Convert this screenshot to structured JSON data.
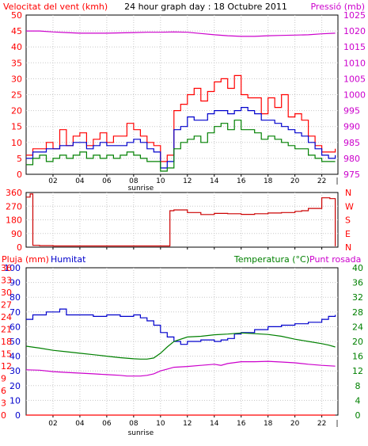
{
  "chart_data": [
    {
      "type": "line",
      "title": "24 hour graph day : 18 Octubre 2011",
      "left_axis_label": "Velocitat del vent (kmh)",
      "right_axis_label": "Pressió (mb)",
      "ylim_left": [
        0,
        50
      ],
      "ylim_right": [
        975,
        1025
      ],
      "left_ticks": [
        "0",
        "5",
        "10",
        "15",
        "20",
        "25",
        "30",
        "35",
        "40",
        "45",
        "50"
      ],
      "right_ticks": [
        "975",
        "980",
        "985",
        "990",
        "995",
        "1000",
        "1005",
        "1010",
        "1015",
        "1020",
        "1025"
      ],
      "x_ticks": [
        "02",
        "04",
        "06",
        "08",
        "10",
        "12",
        "14",
        "16",
        "18",
        "20",
        "22"
      ],
      "x_hours": [
        2,
        4,
        6,
        8,
        10,
        12,
        14,
        16,
        18,
        20,
        22
      ],
      "sunrise_label": "sunrise",
      "sunrise_hour": 9,
      "grid": true,
      "colors": {
        "gust": "#ff0000",
        "wind": "#0000cc",
        "avg": "#008000",
        "pressure": "#cc00cc",
        "title": "#000000"
      },
      "series": [
        {
          "key": "gust",
          "axis": "left",
          "x": [
            0,
            0.5,
            1,
            1.5,
            2,
            2.5,
            3,
            3.5,
            4,
            4.5,
            5,
            5.5,
            6,
            6.5,
            7,
            7.5,
            8,
            8.5,
            9,
            9.5,
            10,
            10.5,
            11,
            11.5,
            12,
            12.5,
            13,
            13.5,
            14,
            14.5,
            15,
            15.5,
            16,
            16.5,
            17,
            17.5,
            18,
            18.5,
            19,
            19.5,
            20,
            20.5,
            21,
            21.5,
            22,
            22.5,
            23
          ],
          "y": [
            6,
            8,
            8,
            10,
            8,
            14,
            9,
            12,
            13,
            9,
            11,
            13,
            10,
            12,
            12,
            16,
            14,
            12,
            10,
            9,
            4,
            6,
            20,
            22,
            25,
            27,
            23,
            26,
            29,
            30,
            27,
            31,
            25,
            24,
            24,
            19,
            24,
            21,
            25,
            18,
            19,
            17,
            12,
            9,
            7,
            7,
            8
          ]
        },
        {
          "key": "wind",
          "axis": "left",
          "x": [
            0,
            0.5,
            1,
            1.5,
            2,
            2.5,
            3,
            3.5,
            4,
            4.5,
            5,
            5.5,
            6,
            6.5,
            7,
            7.5,
            8,
            8.5,
            9,
            9.5,
            10,
            10.5,
            11,
            11.5,
            12,
            12.5,
            13,
            13.5,
            14,
            14.5,
            15,
            15.5,
            16,
            16.5,
            17,
            17.5,
            18,
            18.5,
            19,
            19.5,
            20,
            20.5,
            21,
            21.5,
            22,
            22.5,
            23
          ],
          "y": [
            5,
            7,
            7,
            8,
            8,
            9,
            9,
            10,
            10,
            8,
            9,
            10,
            9,
            9,
            9,
            10,
            11,
            10,
            8,
            7,
            2,
            4,
            14,
            15,
            18,
            17,
            17,
            19,
            20,
            20,
            19,
            20,
            21,
            20,
            19,
            17,
            17,
            16,
            15,
            14,
            13,
            12,
            10,
            8,
            6,
            5,
            6
          ]
        },
        {
          "key": "avg",
          "axis": "left",
          "x": [
            0,
            0.5,
            1,
            1.5,
            2,
            2.5,
            3,
            3.5,
            4,
            4.5,
            5,
            5.5,
            6,
            6.5,
            7,
            7.5,
            8,
            8.5,
            9,
            9.5,
            10,
            10.5,
            11,
            11.5,
            12,
            12.5,
            13,
            13.5,
            14,
            14.5,
            15,
            15.5,
            16,
            16.5,
            17,
            17.5,
            18,
            18.5,
            19,
            19.5,
            20,
            20.5,
            21,
            21.5,
            22,
            22.5,
            23
          ],
          "y": [
            3,
            5,
            6,
            4,
            5,
            6,
            5,
            6,
            7,
            5,
            6,
            5,
            6,
            5,
            6,
            7,
            6,
            5,
            4,
            4,
            1,
            2,
            8,
            10,
            11,
            12,
            10,
            13,
            15,
            16,
            14,
            17,
            14,
            14,
            13,
            11,
            12,
            11,
            10,
            9,
            8,
            8,
            6,
            5,
            4,
            4,
            4
          ]
        },
        {
          "key": "pressure",
          "axis": "right",
          "x": [
            0,
            1,
            2,
            3,
            4,
            5,
            6,
            7,
            8,
            9,
            10,
            11,
            12,
            13,
            14,
            15,
            16,
            17,
            18,
            19,
            20,
            21,
            22,
            23
          ],
          "y": [
            1020,
            1020,
            1019.7,
            1019.5,
            1019.3,
            1019.3,
            1019.3,
            1019.4,
            1019.5,
            1019.6,
            1019.6,
            1019.7,
            1019.6,
            1019.2,
            1018.8,
            1018.5,
            1018.3,
            1018.3,
            1018.5,
            1018.6,
            1018.7,
            1018.8,
            1019.1,
            1019.3
          ]
        }
      ]
    },
    {
      "type": "line",
      "ylim_left": [
        0,
        360
      ],
      "left_ticks": [
        "0",
        "90",
        "180",
        "270",
        "360"
      ],
      "right_ticks": [
        "N",
        "E",
        "S",
        "W",
        "N"
      ],
      "x_hours": [
        2,
        4,
        6,
        8,
        10,
        12,
        14,
        16,
        18,
        20,
        22
      ],
      "grid": true,
      "colors": {
        "direction": "#cc0000",
        "right_labels": "#ff0000"
      },
      "series": [
        {
          "key": "direction",
          "axis": "left",
          "x": [
            0,
            0.3,
            0.5,
            1,
            2,
            3,
            4,
            5,
            6,
            7,
            8,
            9,
            10,
            10.5,
            10.7,
            11,
            12,
            13,
            14,
            15,
            16,
            17,
            18,
            19,
            20,
            20.5,
            21,
            22,
            22.6,
            23
          ],
          "y": [
            330,
            350,
            12,
            10,
            8,
            8,
            8,
            8,
            8,
            8,
            8,
            8,
            8,
            8,
            240,
            245,
            228,
            215,
            222,
            220,
            216,
            220,
            225,
            228,
            236,
            240,
            255,
            325,
            320,
            6
          ]
        }
      ]
    },
    {
      "type": "line",
      "left_axis_label_a": "Pluja (mm)",
      "left_axis_label_b": "Humitat",
      "right_axis_label_a": "Temperatura (°C)",
      "right_axis_label_b": "Punt rosada",
      "ylim_left": [
        0,
        100
      ],
      "ylim_rain": [
        0,
        36
      ],
      "ylim_right": [
        0,
        40
      ],
      "left_ticks": [
        "0",
        "10",
        "20",
        "30",
        "40",
        "50",
        "60",
        "70",
        "80",
        "90",
        "100"
      ],
      "rain_ticks": [
        "0",
        "3",
        "6",
        "9",
        "12",
        "15",
        "18",
        "21",
        "24",
        "27",
        "30",
        "33",
        "36"
      ],
      "right_ticks": [
        "0",
        "4",
        "8",
        "12",
        "16",
        "20",
        "24",
        "28",
        "32",
        "36",
        "40"
      ],
      "x_ticks": [
        "02",
        "04",
        "06",
        "08",
        "10",
        "12",
        "14",
        "16",
        "18",
        "20",
        "22"
      ],
      "x_hours": [
        2,
        4,
        6,
        8,
        10,
        12,
        14,
        16,
        18,
        20,
        22
      ],
      "sunrise_label": "sunrise",
      "sunrise_hour": 9,
      "grid": true,
      "colors": {
        "rain": "#ff0000",
        "humidity": "#0000cc",
        "temperature": "#008000",
        "dewpoint": "#cc00cc"
      },
      "series": [
        {
          "key": "rain",
          "axis": "rain",
          "x": [
            0,
            23
          ],
          "y": [
            0,
            0
          ]
        },
        {
          "key": "humidity",
          "axis": "left",
          "x": [
            0,
            0.5,
            1,
            1.5,
            2,
            2.5,
            3,
            4,
            5,
            6,
            7,
            7.5,
            8,
            8.5,
            9,
            9.5,
            10,
            10.5,
            11,
            11.5,
            12,
            13,
            14,
            14.5,
            15,
            15.5,
            16,
            17,
            18,
            19,
            20,
            21,
            22,
            22.5,
            23
          ],
          "y": [
            65,
            68,
            68,
            70,
            70,
            72,
            68,
            68,
            67,
            68,
            67,
            67,
            68,
            66,
            64,
            61,
            56,
            53,
            50,
            48,
            50,
            51,
            50,
            51,
            52,
            55,
            56,
            58,
            60,
            61,
            62,
            63,
            65,
            67,
            68
          ]
        },
        {
          "key": "temperature",
          "axis": "right",
          "x": [
            0,
            1,
            2,
            3,
            4,
            5,
            6,
            7,
            8,
            8.5,
            9,
            9.5,
            10,
            10.5,
            11,
            12,
            13,
            14,
            15,
            16,
            17,
            18,
            19,
            20,
            21,
            22,
            22.5,
            23
          ],
          "y": [
            18.7,
            18.2,
            17.6,
            17.2,
            16.8,
            16.4,
            16.0,
            15.6,
            15.3,
            15.2,
            15.2,
            15.5,
            16.8,
            18.5,
            20,
            21.2,
            21.4,
            21.8,
            22.0,
            22.3,
            22.1,
            21.9,
            21.4,
            20.6,
            20.0,
            19.4,
            19.0,
            18.5
          ]
        },
        {
          "key": "dewpoint",
          "axis": "right",
          "x": [
            0,
            1,
            2,
            3,
            4,
            5,
            6,
            7,
            7.5,
            8,
            8.5,
            9,
            9.5,
            10,
            10.5,
            11,
            12,
            13,
            14,
            14.5,
            15,
            16,
            17,
            18,
            19,
            20,
            21,
            22,
            22.5,
            23
          ],
          "y": [
            12.3,
            12.2,
            11.8,
            11.6,
            11.4,
            11.2,
            11.0,
            10.8,
            10.6,
            10.6,
            10.6,
            10.8,
            11.2,
            12.0,
            12.5,
            13.0,
            13.2,
            13.5,
            13.8,
            13.5,
            14.0,
            14.5,
            14.5,
            14.6,
            14.4,
            14.2,
            13.8,
            13.5,
            13.4,
            13.3
          ]
        }
      ]
    }
  ]
}
